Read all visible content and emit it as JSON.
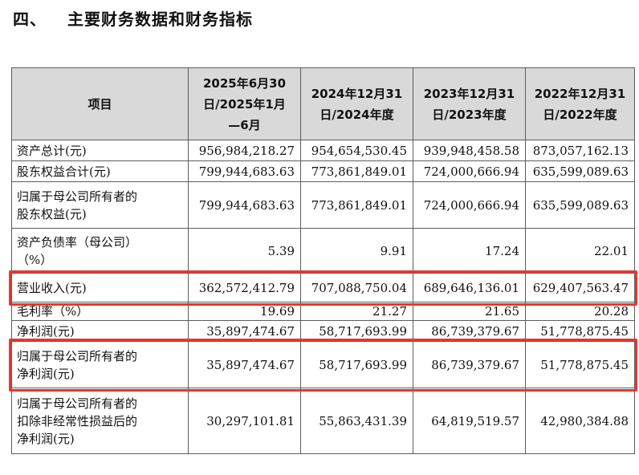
{
  "heading": {
    "number": "四、",
    "title": "主要财务数据和财务指标"
  },
  "table": {
    "headers": [
      {
        "label": "项目"
      },
      {
        "line1": "2025年6月30",
        "line2": "日/2025年1月",
        "line3": "—6月"
      },
      {
        "line1": "2024年12月31",
        "line2": "日/2024年度"
      },
      {
        "line1": "2023年12月31",
        "line2": "日/2023年度"
      },
      {
        "line1": "2022年12月31",
        "line2": "日/2022年度"
      }
    ],
    "rows": [
      {
        "label": [
          "资产总计(元)"
        ],
        "values": [
          "956,984,218.27",
          "954,654,530.45",
          "939,948,458.58",
          "873,057,162.13"
        ],
        "highlighted": false
      },
      {
        "label": [
          "股东权益合计(元)"
        ],
        "values": [
          "799,944,683.63",
          "773,861,849.01",
          "724,000,666.94",
          "635,599,089.63"
        ],
        "highlighted": false
      },
      {
        "label": [
          "归属于母公司所有者的",
          "股东权益(元)"
        ],
        "values": [
          "799,944,683.63",
          "773,861,849.01",
          "724,000,666.94",
          "635,599,089.63"
        ],
        "highlighted": false
      },
      {
        "label": [
          "资产负债率（母公司）",
          "（%）"
        ],
        "values": [
          "5.39",
          "9.91",
          "17.24",
          "22.01"
        ],
        "highlighted": false
      },
      {
        "label": [
          "营业收入(元)"
        ],
        "values": [
          "362,572,412.79",
          "707,088,750.04",
          "689,646,136.01",
          "629,407,563.47"
        ],
        "highlighted": true
      },
      {
        "label": [
          "毛利率（%）"
        ],
        "values": [
          "19.69",
          "21.27",
          "21.65",
          "20.28"
        ],
        "highlighted": false
      },
      {
        "label": [
          "净利润(元)"
        ],
        "values": [
          "35,897,474.67",
          "58,717,693.99",
          "86,739,379.67",
          "51,778,875.45"
        ],
        "highlighted": false
      },
      {
        "label": [
          "归属于母公司所有者的",
          "净利润(元)"
        ],
        "values": [
          "35,897,474.67",
          "58,717,693.99",
          "86,739,379.67",
          "51,778,875.45"
        ],
        "highlighted": true
      },
      {
        "label": [
          "归属于母公司所有者的",
          "扣除非经常性损益后的",
          "净利润(元)"
        ],
        "values": [
          "30,297,101.81",
          "55,863,431.39",
          "64,819,519.57",
          "42,980,384.88"
        ],
        "highlighted": false
      }
    ]
  },
  "highlight_color": "#e8372f",
  "header_bg": "#d9d9d9"
}
